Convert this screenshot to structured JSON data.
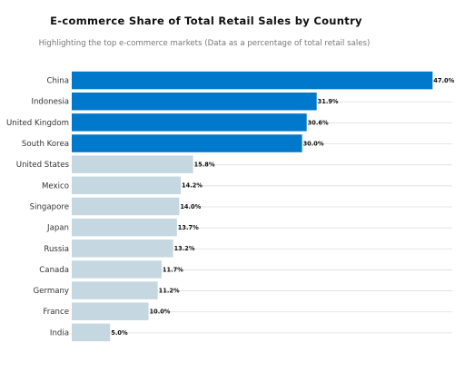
{
  "chart_data": {
    "type": "bar",
    "orientation": "horizontal",
    "title": "E-commerce Share of Total Retail Sales by Country",
    "subtitle": "Highlighting the top e-commerce markets (Data as a percentage of total retail sales)",
    "categories": [
      "China",
      "Indonesia",
      "United Kingdom",
      "South Korea",
      "United States",
      "Mexico",
      "Singapore",
      "Japan",
      "Russia",
      "Canada",
      "Germany",
      "France",
      "India"
    ],
    "values": [
      47.0,
      31.9,
      30.6,
      30.0,
      15.8,
      14.2,
      14.0,
      13.7,
      13.2,
      11.7,
      11.2,
      10.0,
      5.0
    ],
    "value_labels": [
      "47.0%",
      "31.9%",
      "30.6%",
      "30.0%",
      "15.8%",
      "14.2%",
      "14.0%",
      "13.7%",
      "13.2%",
      "11.7%",
      "11.2%",
      "10.0%",
      "5.0%"
    ],
    "highlight_top_n": 4,
    "xlim": [
      0,
      47.2
    ],
    "grid": "horizontal",
    "colors": {
      "highlight": "#0078cc",
      "default": "#c5d7e1",
      "grid": "#dddddd"
    }
  }
}
